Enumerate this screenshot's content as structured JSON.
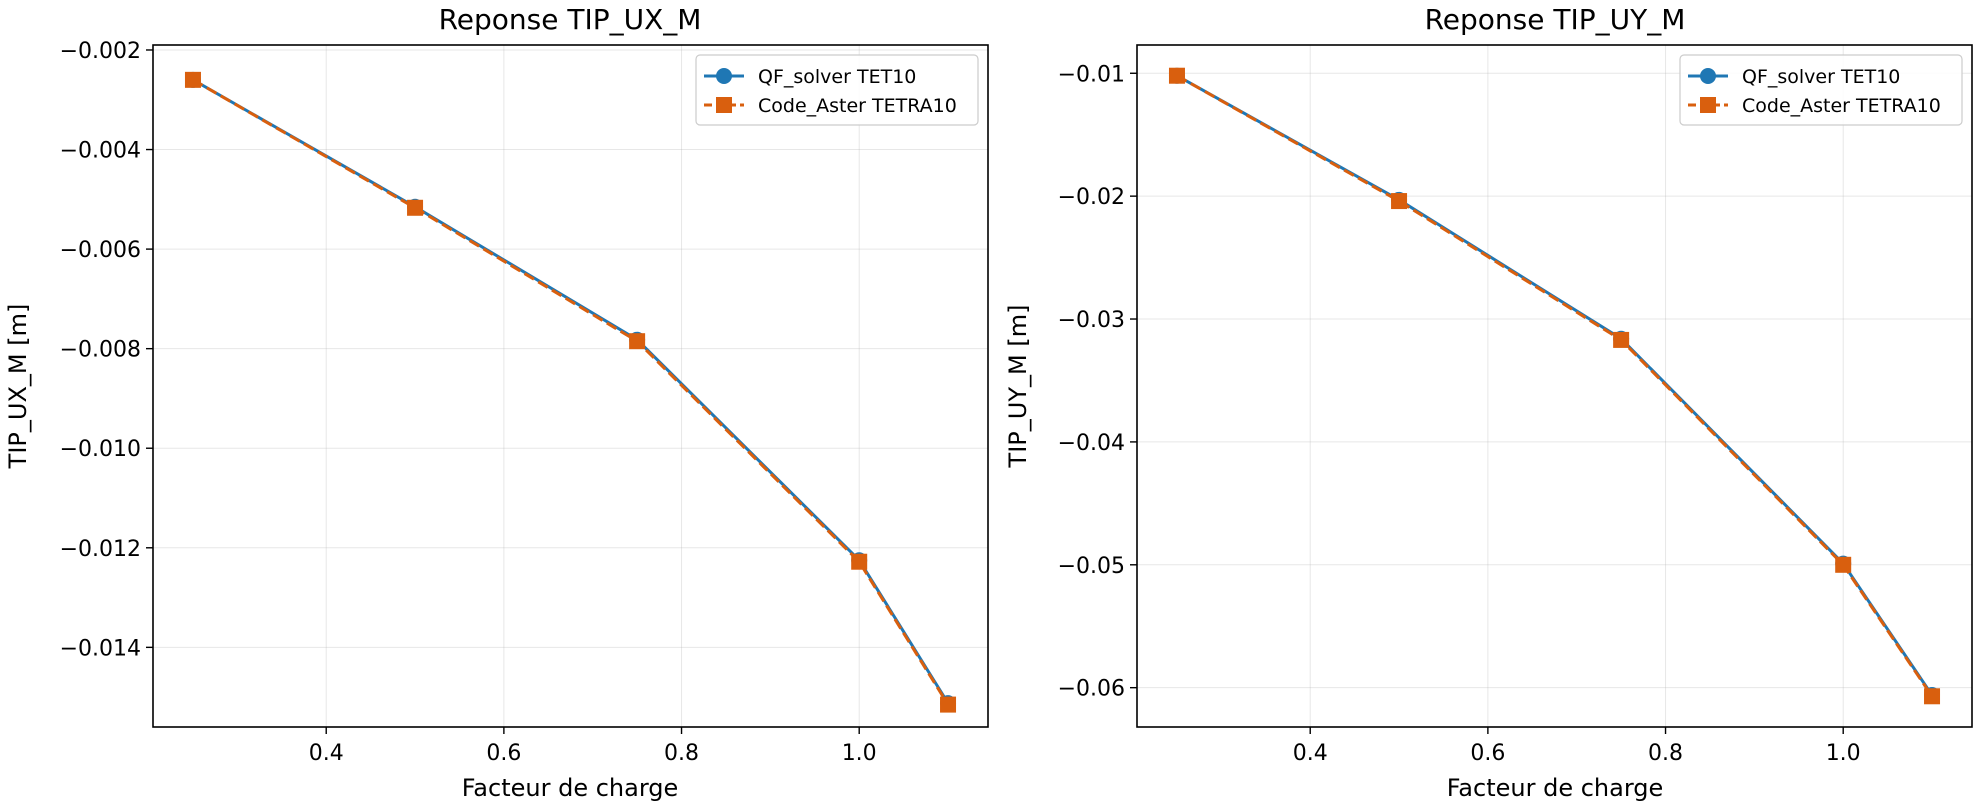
{
  "chart_data": [
    {
      "type": "line",
      "title": "Reponse TIP_UX_M",
      "xlabel": "Facteur de charge",
      "ylabel": "TIP_UX_M [m]",
      "xlim": [
        0.205,
        1.145
      ],
      "ylim": [
        -0.0156,
        -0.0019
      ],
      "x_ticks": [
        0.4,
        0.6,
        0.8,
        1.0
      ],
      "x_tick_labels": [
        "0.4",
        "0.6",
        "0.8",
        "1.0"
      ],
      "y_ticks": [
        -0.002,
        -0.004,
        -0.006,
        -0.008,
        -0.01,
        -0.012,
        -0.014
      ],
      "y_tick_labels": [
        "−0.002",
        "−0.004",
        "−0.006",
        "−0.008",
        "−0.010",
        "−0.012",
        "−0.014"
      ],
      "grid": true,
      "legend_position": "top-right",
      "x": [
        0.25,
        0.5,
        0.75,
        1.0,
        1.1
      ],
      "series": [
        {
          "name": "QF_solver TET10",
          "values": [
            -0.0026,
            -0.00515,
            -0.00782,
            -0.01225,
            -0.01512
          ],
          "color": "#1f77b4",
          "marker": "circle",
          "linestyle": "solid"
        },
        {
          "name": "Code_Aster TETRA10",
          "values": [
            -0.0026,
            -0.00517,
            -0.00785,
            -0.01228,
            -0.01515
          ],
          "color": "#d95f0e",
          "marker": "square",
          "linestyle": "dashed"
        }
      ]
    },
    {
      "type": "line",
      "title": "Reponse TIP_UY_M",
      "xlabel": "Facteur de charge",
      "ylabel": "TIP_UY_M [m]",
      "xlim": [
        0.205,
        1.145
      ],
      "ylim": [
        -0.0632,
        -0.0077
      ],
      "x_ticks": [
        0.4,
        0.6,
        0.8,
        1.0
      ],
      "x_tick_labels": [
        "0.4",
        "0.6",
        "0.8",
        "1.0"
      ],
      "y_ticks": [
        -0.01,
        -0.02,
        -0.03,
        -0.04,
        -0.05,
        -0.06
      ],
      "y_tick_labels": [
        "−0.01",
        "−0.02",
        "−0.03",
        "−0.04",
        "−0.05",
        "−0.06"
      ],
      "grid": true,
      "legend_position": "top-right",
      "x": [
        0.25,
        0.5,
        0.75,
        1.0,
        1.1
      ],
      "series": [
        {
          "name": "QF_solver TET10",
          "values": [
            -0.0102,
            -0.0203,
            -0.0316,
            -0.0499,
            -0.0606
          ],
          "color": "#1f77b4",
          "marker": "circle",
          "linestyle": "solid"
        },
        {
          "name": "Code_Aster TETRA10",
          "values": [
            -0.0102,
            -0.0204,
            -0.0317,
            -0.05,
            -0.0607
          ],
          "color": "#d95f0e",
          "marker": "square",
          "linestyle": "dashed"
        }
      ]
    }
  ]
}
